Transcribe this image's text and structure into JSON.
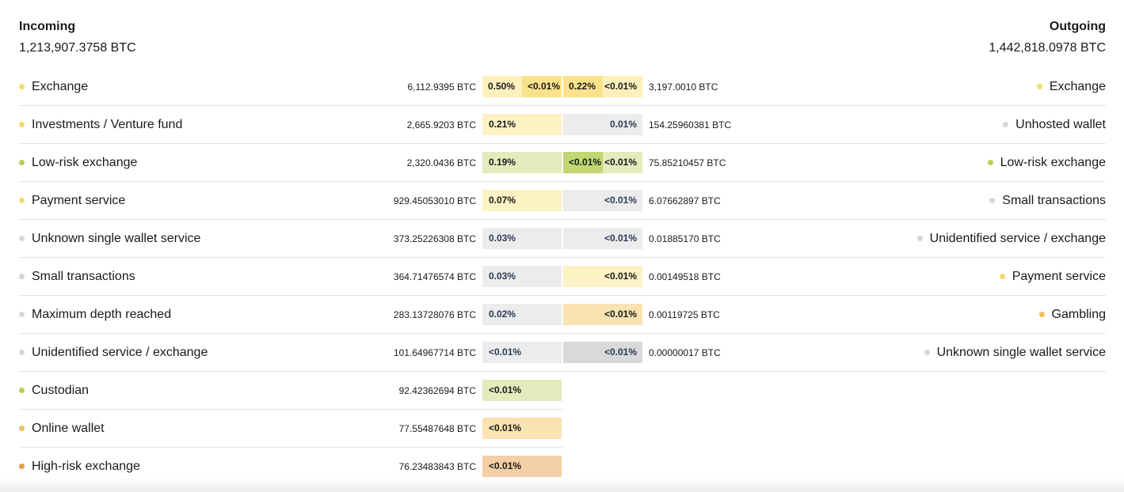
{
  "incoming": {
    "title": "Incoming",
    "total": "1,213,907.3758 BTC",
    "rows": [
      {
        "label": "Exchange",
        "amount": "6,112.9395 BTC",
        "pct": "0.50%",
        "pct2": "<0.01%",
        "dot": "#f2dc6a",
        "bg": "#fdf0bd",
        "bg2": "#f9e28a"
      },
      {
        "label": "Investments / Venture fund",
        "amount": "2,665.9203 BTC",
        "pct": "0.21%",
        "dot": "#f2dc6a",
        "bg": "#fdf2c4"
      },
      {
        "label": "Low-risk exchange",
        "amount": "2,320.0436 BTC",
        "pct": "0.19%",
        "dot": "#b5cf52",
        "bg": "#e4ebbd"
      },
      {
        "label": "Payment service",
        "amount": "929.45053010 BTC",
        "pct": "0.07%",
        "dot": "#f2dc6a",
        "bg": "#fdf2c4"
      },
      {
        "label": "Unknown single wallet service",
        "amount": "373.25226308 BTC",
        "pct": "0.03%",
        "dot": "#d6d6d6",
        "bg": "#ececec",
        "navy": true
      },
      {
        "label": "Small transactions",
        "amount": "364.71476574 BTC",
        "pct": "0.03%",
        "dot": "#d6d6d6",
        "bg": "#ececec",
        "navy": true
      },
      {
        "label": "Maximum depth reached",
        "amount": "283.13728076 BTC",
        "pct": "0.02%",
        "dot": "#d6d6d6",
        "bg": "#ececec",
        "navy": true
      },
      {
        "label": "Unidentified service / exchange",
        "amount": "101.64967714 BTC",
        "pct": "<0.01%",
        "dot": "#d6d6d6",
        "bg": "#ececec",
        "navy": true
      },
      {
        "label": "Custodian",
        "amount": "92.42362694 BTC",
        "pct": "<0.01%",
        "dot": "#b5cf52",
        "bg": "#e4ebbd"
      },
      {
        "label": "Online wallet",
        "amount": "77.55487648 BTC",
        "pct": "<0.01%",
        "dot": "#f2c15a",
        "bg": "#f9e3b2"
      },
      {
        "label": "High-risk exchange",
        "amount": "76.23483843 BTC",
        "pct": "<0.01%",
        "dot": "#e89c4b",
        "bg": "#f4cfa5"
      }
    ]
  },
  "outgoing": {
    "title": "Outgoing",
    "total": "1,442,818.0978 BTC",
    "rows": [
      {
        "label": "Exchange",
        "amount": "3,197.0010 BTC",
        "pct": "0.22%",
        "pct2": "<0.01%",
        "dot": "#f2dc6a",
        "bg": "#f9e28a",
        "bg2": "#fdf0bd"
      },
      {
        "label": "Unhosted wallet",
        "amount": "154.25960381 BTC",
        "pct": "0.01%",
        "dot": "#d6d6d6",
        "bg": "#ececec",
        "navy": true
      },
      {
        "label": "Low-risk exchange",
        "amount": "75.85210457 BTC",
        "pct": "<0.01%",
        "pct2": "<0.01%",
        "dot": "#b5cf52",
        "bg": "#c2d673",
        "bg2": "#e4ebbd"
      },
      {
        "label": "Small transactions",
        "amount": "6.07662897 BTC",
        "pct": "<0.01%",
        "dot": "#d6d6d6",
        "bg": "#ececec",
        "navy": true
      },
      {
        "label": "Unidentified service / exchange",
        "amount": "0.01885170 BTC",
        "pct": "<0.01%",
        "dot": "#d6d6d6",
        "bg": "#ececec",
        "navy": true
      },
      {
        "label": "Payment service",
        "amount": "0.00149518 BTC",
        "pct": "<0.01%",
        "dot": "#f2dc6a",
        "bg": "#fdf2c4"
      },
      {
        "label": "Gambling",
        "amount": "0.00119725 BTC",
        "pct": "<0.01%",
        "dot": "#f2c15a",
        "bg": "#f9e3b2"
      },
      {
        "label": "Unknown single wallet service",
        "amount": "0.00000017 BTC",
        "pct": "<0.01%",
        "dot": "#d6d6d6",
        "bg": "#d9d9d9",
        "navy": true
      }
    ]
  }
}
